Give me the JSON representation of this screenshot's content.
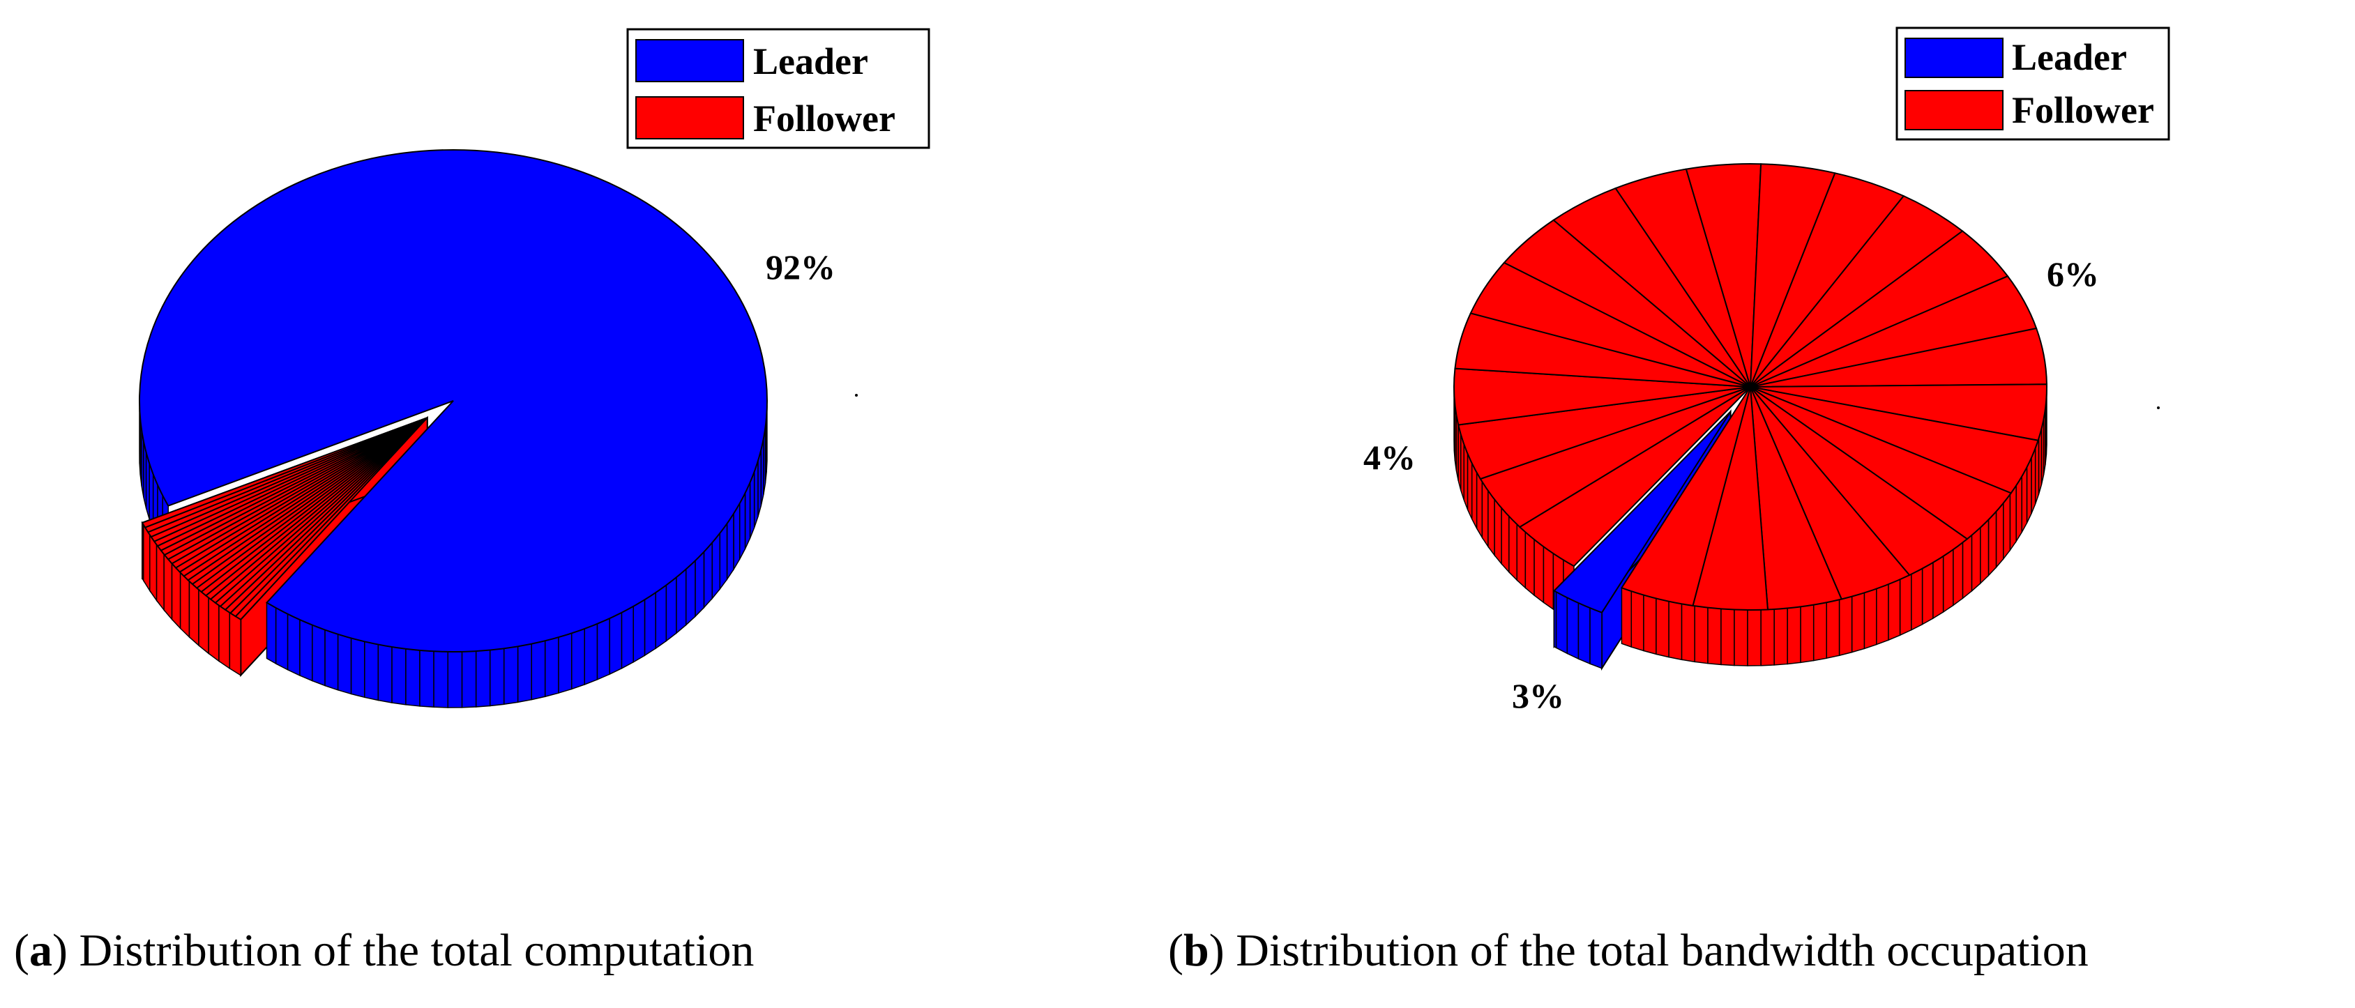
{
  "chart_data": [
    {
      "type": "pie",
      "style": "3d-exploded",
      "legend": {
        "placement": "top-right",
        "entries": [
          {
            "label": "Leader",
            "color": "#0000ff"
          },
          {
            "label": "Follower",
            "color": "#ff0000"
          }
        ]
      },
      "slices": [
        {
          "series": "Leader",
          "value": 92,
          "color": "#0000ff"
        },
        {
          "series": "Follower",
          "value": 8,
          "color": "#ff0000",
          "segments": 24,
          "exploded": true
        }
      ],
      "data_labels": [
        "92%"
      ],
      "caption": {
        "letter": "a",
        "text": "Distribution of the total computation"
      }
    },
    {
      "type": "pie",
      "style": "3d-exploded",
      "legend": {
        "placement": "top-right",
        "entries": [
          {
            "label": "Leader",
            "color": "#0000ff"
          },
          {
            "label": "Follower",
            "color": "#ff0000"
          }
        ]
      },
      "slices": [
        {
          "series": "Leader",
          "value": 3,
          "color": "#0000ff",
          "exploded": true
        },
        {
          "series": "Follower",
          "value": 97,
          "color": "#ff0000",
          "segments": 24
        }
      ],
      "data_labels": [
        "6%",
        "4%",
        "3%"
      ],
      "caption": {
        "letter": "b",
        "text": "Distribution of the total bandwidth occupation"
      }
    }
  ]
}
